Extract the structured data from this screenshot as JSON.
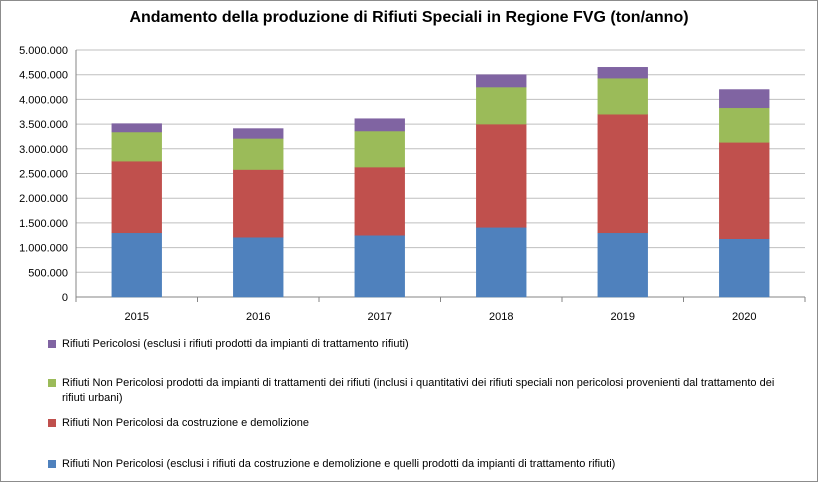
{
  "chart_data": {
    "type": "bar",
    "stacked": true,
    "title": "Andamento della produzione di Rifiuti Speciali in Regione FVG (ton/anno)",
    "categories": [
      "2015",
      "2016",
      "2017",
      "2018",
      "2019",
      "2020"
    ],
    "ylim": [
      0,
      5000000
    ],
    "yticks": [
      "0",
      "500.000",
      "1.000.000",
      "1.500.000",
      "2.000.000",
      "2.500.000",
      "3.000.000",
      "3.500.000",
      "4.000.000",
      "4.500.000",
      "5.000.000"
    ],
    "ytick_values": [
      0,
      500000,
      1000000,
      1500000,
      2000000,
      2500000,
      3000000,
      3500000,
      4000000,
      4500000,
      5000000
    ],
    "grid": true,
    "legend_position": "bottom",
    "series": [
      {
        "name": "Rifiuti Non Pericolosi (esclusi i rifiuti da costruzione e demolizione e quelli prodotti da impianti di trattamento rifiuti)",
        "color": "#4f81bd",
        "values": [
          1300000,
          1210000,
          1250000,
          1410000,
          1300000,
          1180000
        ]
      },
      {
        "name": "Rifiuti Non Pericolosi da costruzione e demolizione",
        "color": "#c0504d",
        "values": [
          1450000,
          1370000,
          1380000,
          2090000,
          2400000,
          1950000
        ]
      },
      {
        "name": "Rifiuti Non Pericolosi prodotti da impianti di trattamenti dei rifiuti (inclusi i quantitativi dei rifiuti speciali non pericolosi provenienti dal trattamento dei rifiuti urbani)",
        "color": "#9bbb59",
        "values": [
          590000,
          630000,
          730000,
          750000,
          730000,
          700000
        ]
      },
      {
        "name": "Rifiuti Pericolosi (esclusi i rifiuti prodotti da impianti di trattamento rifiuti)",
        "color": "#8064a2",
        "values": [
          170000,
          200000,
          250000,
          250000,
          220000,
          370000
        ]
      }
    ]
  }
}
